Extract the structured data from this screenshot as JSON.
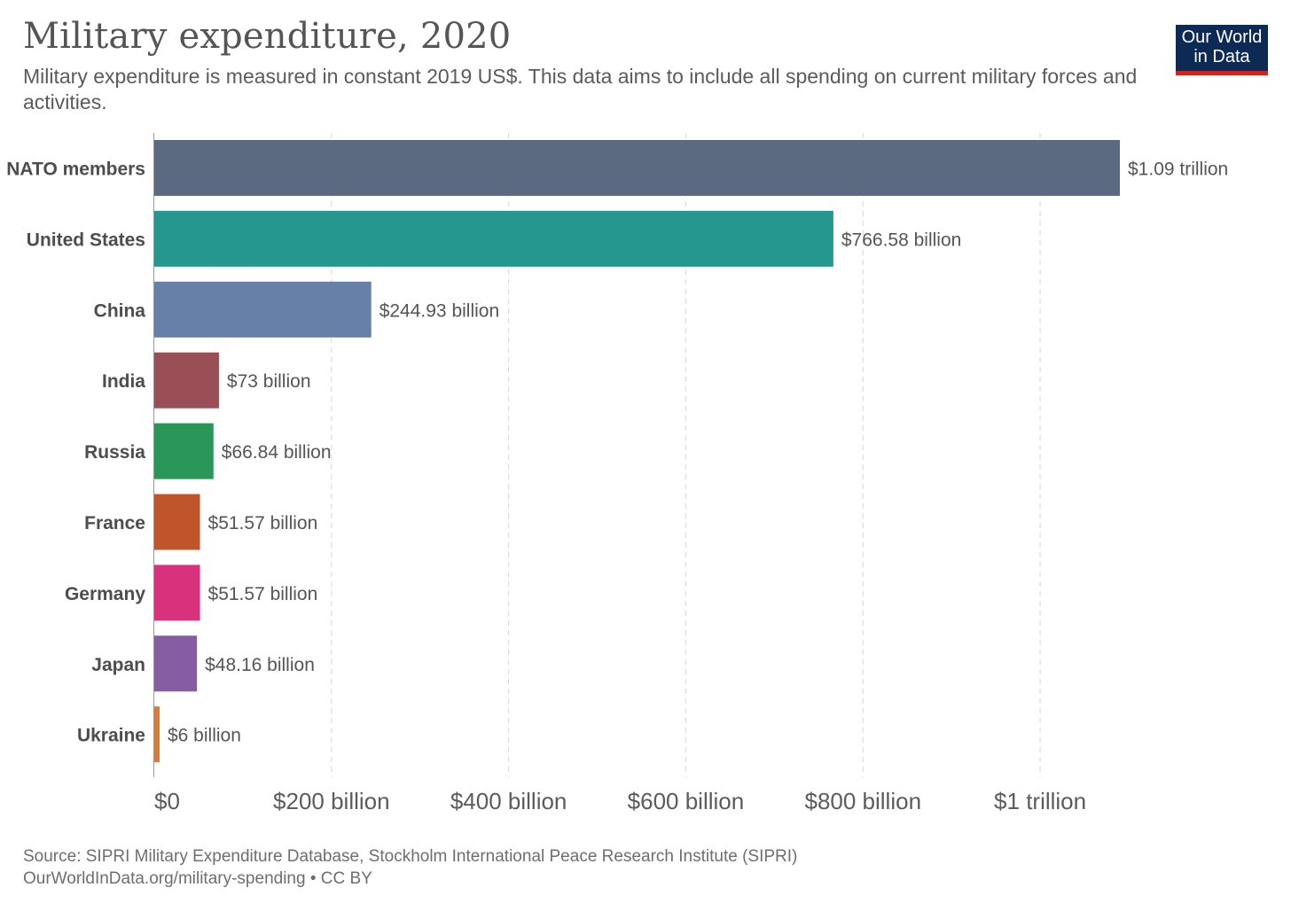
{
  "header": {
    "title": "Military expenditure, 2020",
    "subtitle": "Military expenditure is measured in constant 2019 US$. This data aims to include all spending on current military forces and activities."
  },
  "logo": {
    "line1": "Our World",
    "line2": "in Data",
    "colors": {
      "background": "#0d2a54",
      "accent": "#ce261e"
    }
  },
  "footer": {
    "source": "Source: SIPRI Military Expenditure Database, Stockholm International Peace Research Institute (SIPRI)",
    "link": "OurWorldInData.org/military-spending • CC BY"
  },
  "chart_data": {
    "type": "bar",
    "orientation": "horizontal",
    "grid": true,
    "xlim": [
      0,
      1090000000000
    ],
    "categories": [
      "NATO members",
      "United States",
      "China",
      "India",
      "Russia",
      "France",
      "Germany",
      "Japan",
      "Ukraine"
    ],
    "values": [
      1090000000000,
      766580000000,
      244930000000,
      73000000000,
      66840000000,
      51570000000,
      51570000000,
      48160000000,
      6000000000
    ],
    "value_labels": [
      "$1.09 trillion",
      "$766.58 billion",
      "$244.93 billion",
      "$73 billion",
      "$66.84 billion",
      "$51.57 billion",
      "$51.57 billion",
      "$48.16 billion",
      "$6 billion"
    ],
    "colors": [
      "#5b6a80",
      "#26978f",
      "#6780a8",
      "#9a4e55",
      "#2a9658",
      "#c0542b",
      "#d8327c",
      "#865ca2",
      "#d87c3a"
    ],
    "x_ticks": [
      0,
      200000000000,
      400000000000,
      600000000000,
      800000000000,
      1000000000000
    ],
    "x_tick_labels": [
      "$0",
      "$200 billion",
      "$400 billion",
      "$600 billion",
      "$800 billion",
      "$1 trillion"
    ]
  }
}
